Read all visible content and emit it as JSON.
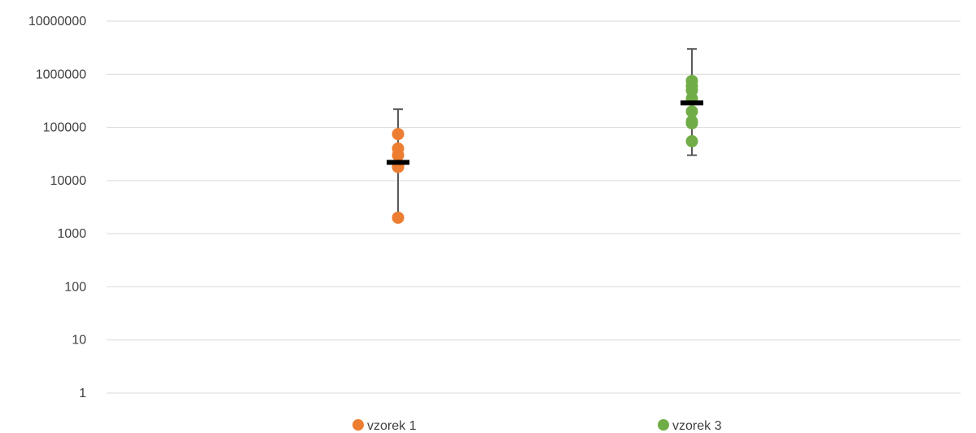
{
  "chart_data": {
    "type": "scatter",
    "title": "",
    "xlabel": "",
    "ylabel": "",
    "y_scale": "log",
    "ylim": [
      1,
      10000000
    ],
    "y_ticks": [
      "1",
      "10",
      "100",
      "1000",
      "10000",
      "100000",
      "1000000",
      "10000000"
    ],
    "grid": true,
    "legend_position": "bottom",
    "series": [
      {
        "name": "vzorek 1",
        "color": "#ED7D31",
        "points": [
          2000,
          18000,
          20000,
          30000,
          40000,
          75000
        ],
        "mean": 22000,
        "error_low": 2000,
        "error_high": 220000
      },
      {
        "name": "vzorek 3",
        "color": "#70AD47",
        "points": [
          55000,
          120000,
          130000,
          200000,
          350000,
          500000,
          600000,
          750000
        ],
        "mean": 290000,
        "error_low": 30000,
        "error_high": 3000000
      }
    ],
    "colors": {
      "grid": "#D9D9D9",
      "error_bar": "#595959",
      "mean_marker": "#000000",
      "text": "#404040"
    }
  }
}
